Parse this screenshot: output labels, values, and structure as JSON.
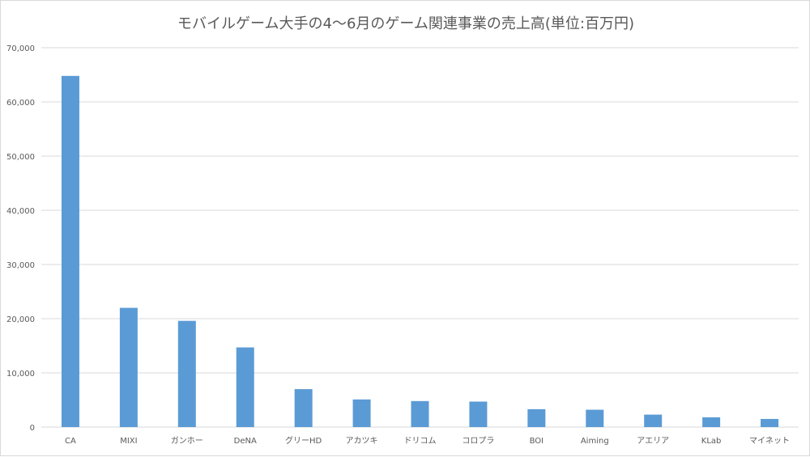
{
  "chart_data": {
    "type": "bar",
    "title": "モバイルゲーム大手の4〜6月のゲーム関連事業の売上高(単位:百万円)",
    "xlabel": "",
    "ylabel": "",
    "categories": [
      "CA",
      "MIXI",
      "ガンホー",
      "DeNA",
      "グリーHD",
      "アカツキ",
      "ドリコム",
      "コロプラ",
      "BOI",
      "Aiming",
      "アエリア",
      "KLab",
      "マイネット"
    ],
    "values": [
      64800,
      22000,
      19600,
      14700,
      7000,
      5100,
      4800,
      4700,
      3300,
      3200,
      2300,
      1800,
      1500
    ],
    "ylim": [
      0,
      70000
    ],
    "yticks": [
      0,
      10000,
      20000,
      30000,
      40000,
      50000,
      60000,
      70000
    ],
    "ytick_labels": [
      "0",
      "10,000",
      "20,000",
      "30,000",
      "40,000",
      "50,000",
      "60,000",
      "70,000"
    ],
    "grid": true,
    "legend": "none",
    "colors": {
      "bar": "#5b9bd5",
      "grid": "#d9d9d9",
      "text": "#595959"
    }
  }
}
